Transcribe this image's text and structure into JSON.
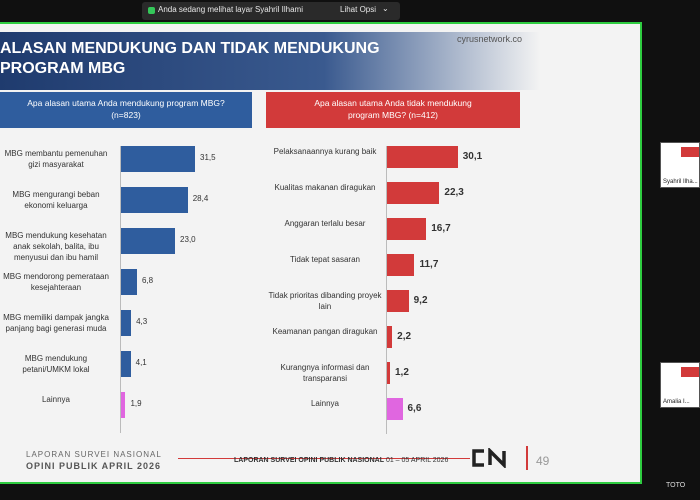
{
  "banner": {
    "text": "Anda sedang melihat layar  Syahril Ilhami",
    "options_label": "Lihat Opsi"
  },
  "slide": {
    "title_line1": "ALASAN MENDUKUNG DAN TIDAK MENDUKUNG",
    "title_line2": "PROGRAM MBG",
    "site": "cyrusnetwork.co",
    "left_question": "Apa alasan utama Anda mendukung program MBG?",
    "left_n": "(n=823)",
    "right_question": "Apa alasan utama Anda tidak mendukung",
    "right_question2": "program MBG? (n=412)",
    "footer_line1": "LAPORAN SURVEI NASIONAL",
    "footer_line2": "OPINI PUBLIK APRIL 2026",
    "footer_report_bold": "LAPORAN SURVEI OPINI PUBLIK NASIONAL",
    "footer_report_dates": " 01 – 05 APRIL 2026",
    "page_number": "49"
  },
  "thumbnails": [
    {
      "name": "Syahril Ilha..."
    },
    {
      "name": "Amalia I..."
    }
  ],
  "corner_text": "TOTO",
  "colors": {
    "blue": "#2f5d9e",
    "red": "#d23a3a",
    "pink": "#e066e0"
  },
  "chart_data": [
    {
      "type": "bar",
      "title": "Apa alasan utama Anda mendukung program MBG? (n=823)",
      "categories": [
        "MBG membantu pemenuhan gizi masyarakat",
        "MBG mengurangi beban ekonomi keluarga",
        "MBG mendukung kesehatan anak sekolah, balita, ibu menyusui dan ibu hamil",
        "MBG mendorong pemerataan kesejahteraan",
        "MBG memiliki dampak jangka panjang bagi generasi muda",
        "MBG mendukung petani/UMKM lokal",
        "Lainnya"
      ],
      "values": [
        31.5,
        28.4,
        23.0,
        6.8,
        4.3,
        4.1,
        1.9
      ],
      "labels": [
        "31,5",
        "28,4",
        "23,0",
        "6,8",
        "4,3",
        "4,1",
        "1,9"
      ]
    },
    {
      "type": "bar",
      "title": "Apa alasan utama Anda tidak mendukung program MBG? (n=412)",
      "categories": [
        "Pelaksanaannya kurang baik",
        "Kualitas makanan diragukan",
        "Anggaran terlalu besar",
        "Tidak tepat sasaran",
        "Tidak prioritas dibanding proyek lain",
        "Keamanan pangan diragukan",
        "Kurangnya informasi dan transparansi",
        "Lainnya"
      ],
      "values": [
        30.1,
        22.3,
        16.7,
        11.7,
        9.2,
        2.2,
        1.2,
        6.6
      ],
      "labels": [
        "30,1",
        "22,3",
        "16,7",
        "11,7",
        "9,2",
        "2,2",
        "1,2",
        "6,6"
      ]
    }
  ]
}
